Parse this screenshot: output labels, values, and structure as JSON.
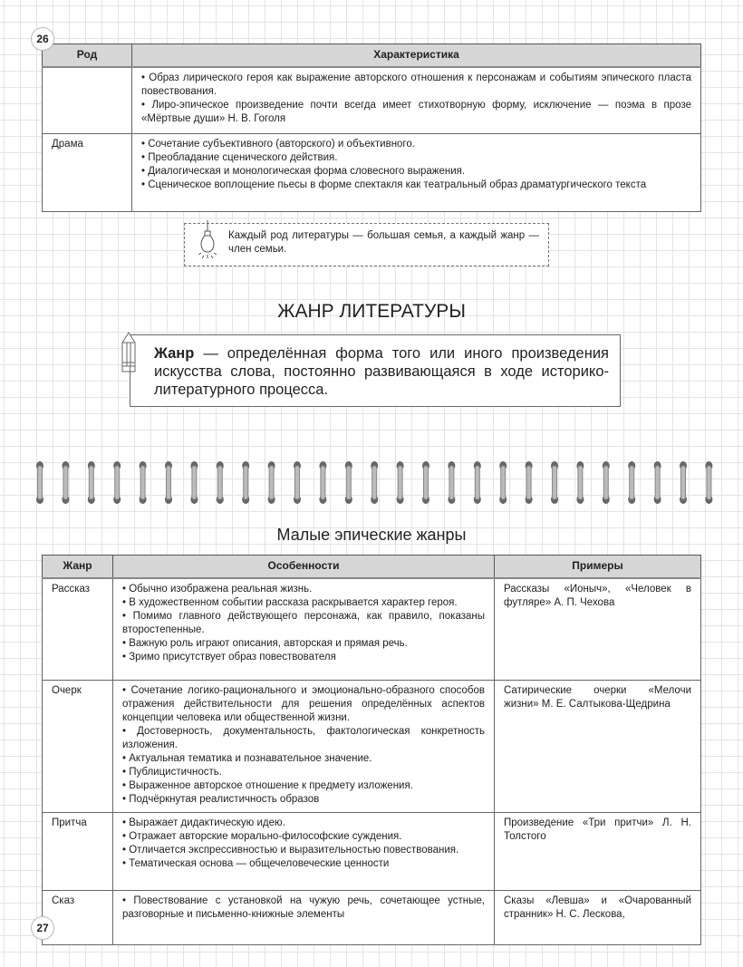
{
  "page_numbers": {
    "top": "26",
    "bottom": "27"
  },
  "table1": {
    "headers": [
      "Род",
      "Характеристика"
    ],
    "rows": [
      {
        "genus": "",
        "items": [
          "Образ лирического героя как выражение авторского отношения к персонажам и событиям эпического пласта повествования.",
          "Лиро-эпическое произведение почти всегда имеет стихотворную форму, исключение — поэма в прозе «Мёртвые души» Н. В. Гоголя"
        ]
      },
      {
        "genus": "Драма",
        "items": [
          "Сочетание субъективного (авторского) и объективного.",
          "Преобладание сценического действия.",
          "Диалогическая и монологическая форма словесного выражения.",
          "Сценическое воплощение пьесы в форме спектакля как театральный образ драматургического текста"
        ]
      }
    ]
  },
  "note": {
    "icon": "lightbulb-icon",
    "text": "Каждый род литературы — большая семья, а каждый жанр — член семьи."
  },
  "section_title": "ЖАНР ЛИТЕРАТУРЫ",
  "definition": {
    "icon": "pencil-icon",
    "term": "Жанр",
    "text": " — определённая форма того или иного произведения искусства слова, постоянно развивающаяся в ходе историко-литературного процесса."
  },
  "subtitle": "Малые эпические жанры",
  "table2": {
    "headers": [
      "Жанр",
      "Особенности",
      "Примеры"
    ],
    "rows": [
      {
        "genre": "Рассказ",
        "items": [
          "Обычно изображена реальная жизнь.",
          "В художественном событии рассказа раскрывается характер героя.",
          "Помимо главного действующего персонажа, как правило, показаны второстепенные.",
          "Важную роль играют описания, авторская и прямая речь.",
          "Зримо присутствует образ повествователя"
        ],
        "examples": "Рассказы «Ионыч», «Человек в футляре» А. П. Чехова"
      },
      {
        "genre": "Очерк",
        "items": [
          "Сочетание логико-рационального и эмоционально-образного способов отражения действительности для решения определённых аспектов концепции человека или общественной жизни.",
          "Достоверность, документальность, фактологическая конкретность изложения.",
          "Актуальная тематика и познавательное значение.",
          "Публицистичность.",
          "Выраженное авторское отношение к предмету изложения.",
          "Подчёркнутая реалистичность образов"
        ],
        "examples": "Сатирические очерки «Мелочи жизни» М. Е. Салтыкова-Щедрина"
      },
      {
        "genre": "Притча",
        "items": [
          "Выражает дидактическую идею.",
          "Отражает авторские морально-философские суждения.",
          "Отличается экспрессивностью и выразительностью повествования.",
          "Тематическая основа — общечеловеческие ценности"
        ],
        "examples": "Произведение «Три притчи» Л. Н. Толстого"
      },
      {
        "genre": "Сказ",
        "items": [
          "Повествование с установкой на чужую речь, сочетающее устные, разговорные и письменно-книжные элементы"
        ],
        "examples": "Сказы «Левша» и «Очарованный странник» Н. С. Лескова,"
      }
    ]
  }
}
